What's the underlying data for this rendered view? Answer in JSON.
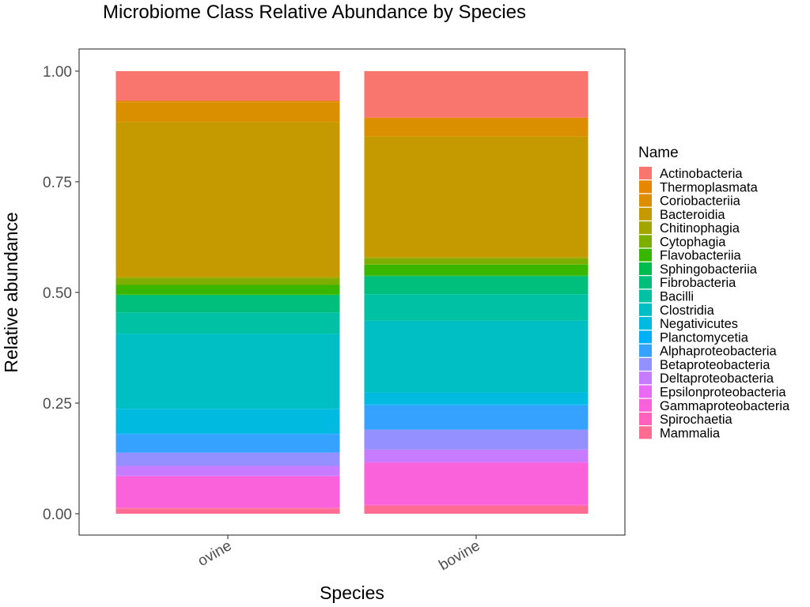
{
  "chart_data": {
    "type": "bar",
    "stacked": true,
    "title": "Microbiome Class Relative Abundance by Species",
    "xlabel": "Species",
    "ylabel": "Relative abundance",
    "ylim": [
      0,
      1
    ],
    "yticks": [
      {
        "value": 0.0,
        "label": "0.00"
      },
      {
        "value": 0.25,
        "label": "0.25"
      },
      {
        "value": 0.5,
        "label": "0.50"
      },
      {
        "value": 0.75,
        "label": "0.75"
      },
      {
        "value": 1.0,
        "label": "1.00"
      }
    ],
    "grid": false,
    "legend_position": "right",
    "legend_title": "Name",
    "categories": [
      "ovine",
      "bovine"
    ],
    "series": [
      {
        "name": "Actinobacteria",
        "color": "#F8766D",
        "values": [
          0.067,
          0.105
        ]
      },
      {
        "name": "Thermoplasmata",
        "color": "#E58700",
        "values": [
          0.003,
          0.003
        ]
      },
      {
        "name": "Coriobacteriia",
        "color": "#DA8F00",
        "values": [
          0.045,
          0.04
        ]
      },
      {
        "name": "Bacteroidia",
        "color": "#C49A00",
        "values": [
          0.35,
          0.272
        ]
      },
      {
        "name": "Chitinophagia",
        "color": "#A3A500",
        "values": [
          0.003,
          0.004
        ]
      },
      {
        "name": "Cytophagia",
        "color": "#7CAE00",
        "values": [
          0.015,
          0.013
        ]
      },
      {
        "name": "Flavobacteriia",
        "color": "#39B600",
        "values": [
          0.022,
          0.025
        ]
      },
      {
        "name": "Sphingobacteriia",
        "color": "#00BB4E",
        "values": [
          0.002,
          0.002
        ]
      },
      {
        "name": "Fibrobacteria",
        "color": "#00BF7D",
        "values": [
          0.038,
          0.04
        ]
      },
      {
        "name": "Bacilli",
        "color": "#00C1A3",
        "values": [
          0.048,
          0.06
        ]
      },
      {
        "name": "Clostridia",
        "color": "#00BFC4",
        "values": [
          0.17,
          0.162
        ]
      },
      {
        "name": "Negativicutes",
        "color": "#00BAE0",
        "values": [
          0.055,
          0.027
        ]
      },
      {
        "name": "Planctomycetia",
        "color": "#00B0F6",
        "values": [
          0.002,
          0.002
        ]
      },
      {
        "name": "Alphaproteobacteria",
        "color": "#35A2FF",
        "values": [
          0.042,
          0.055
        ]
      },
      {
        "name": "Betaproteobacteria",
        "color": "#9590FF",
        "values": [
          0.03,
          0.045
        ]
      },
      {
        "name": "Deltaproteobacteria",
        "color": "#C77CFF",
        "values": [
          0.022,
          0.028
        ]
      },
      {
        "name": "Epsilonproteobacteria",
        "color": "#E76BF3",
        "values": [
          0.002,
          0.002
        ]
      },
      {
        "name": "Gammaproteobacteria",
        "color": "#FA62DB",
        "values": [
          0.07,
          0.095
        ]
      },
      {
        "name": "Spirochaetia",
        "color": "#FF62BC",
        "values": [
          0.002,
          0.002
        ]
      },
      {
        "name": "Mammalia",
        "color": "#FF6C91",
        "values": [
          0.012,
          0.018
        ]
      }
    ]
  }
}
